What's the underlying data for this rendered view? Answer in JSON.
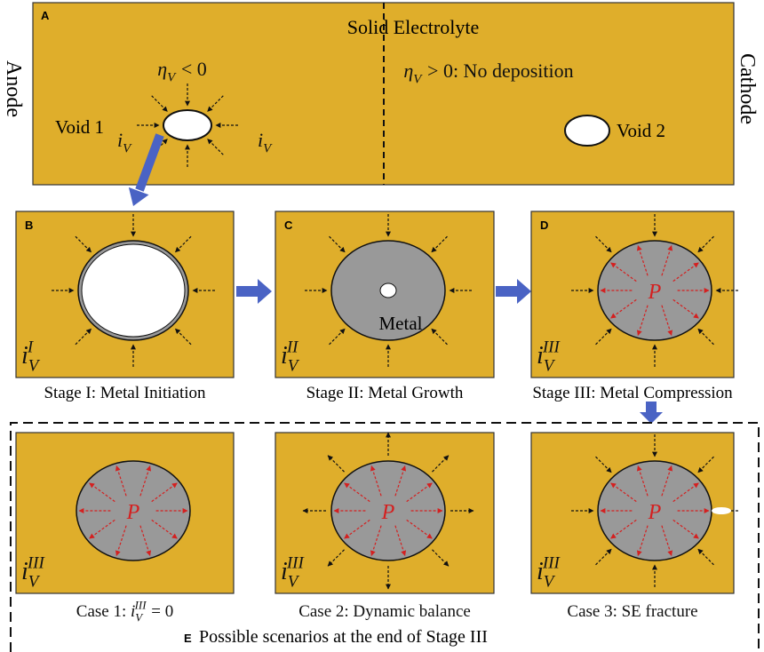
{
  "panel_a": {
    "label": "A",
    "title": "Solid Electrolyte",
    "left_electrode": "Anode",
    "right_electrode": "Cathode",
    "left_condition": {
      "symbol": "η",
      "subscript": "V",
      "relation": "< 0"
    },
    "right_condition": {
      "symbol": "η",
      "subscript": "V",
      "relation": "> 0: No deposition"
    },
    "void_1": "Void 1",
    "void_2": "Void 2",
    "current_left": {
      "symbol": "i",
      "subscript": "V"
    },
    "current_right": {
      "symbol": "i",
      "subscript": "V"
    }
  },
  "stages": [
    {
      "label": "B",
      "current": {
        "symbol": "i",
        "subscript": "V",
        "superscript": "I"
      },
      "caption": "Stage I: Metal Initiation"
    },
    {
      "label": "C",
      "current": {
        "symbol": "i",
        "subscript": "V",
        "superscript": "II"
      },
      "inner_label": "Metal",
      "caption": "Stage II: Metal Growth"
    },
    {
      "label": "D",
      "current": {
        "symbol": "i",
        "subscript": "V",
        "superscript": "III"
      },
      "inner_label": "P",
      "caption": "Stage III: Metal Compression"
    }
  ],
  "scenarios": {
    "label": "E",
    "title": "Possible scenarios at the end of Stage III",
    "cases": [
      {
        "current": {
          "symbol": "i",
          "subscript": "V",
          "superscript": "III"
        },
        "inner_label": "P",
        "caption": {
          "text": "Case 1: ",
          "symbol": "i",
          "subscript": "V",
          "superscript": "III",
          "relation": "= 0"
        }
      },
      {
        "current": {
          "symbol": "i",
          "subscript": "V",
          "superscript": "III"
        },
        "inner_label": "P",
        "caption": {
          "text": "Case 2: Dynamic balance"
        }
      },
      {
        "current": {
          "symbol": "i",
          "subscript": "V",
          "superscript": "III"
        },
        "inner_label": "P",
        "caption": {
          "text": "Case 3: SE fracture"
        }
      }
    ]
  }
}
